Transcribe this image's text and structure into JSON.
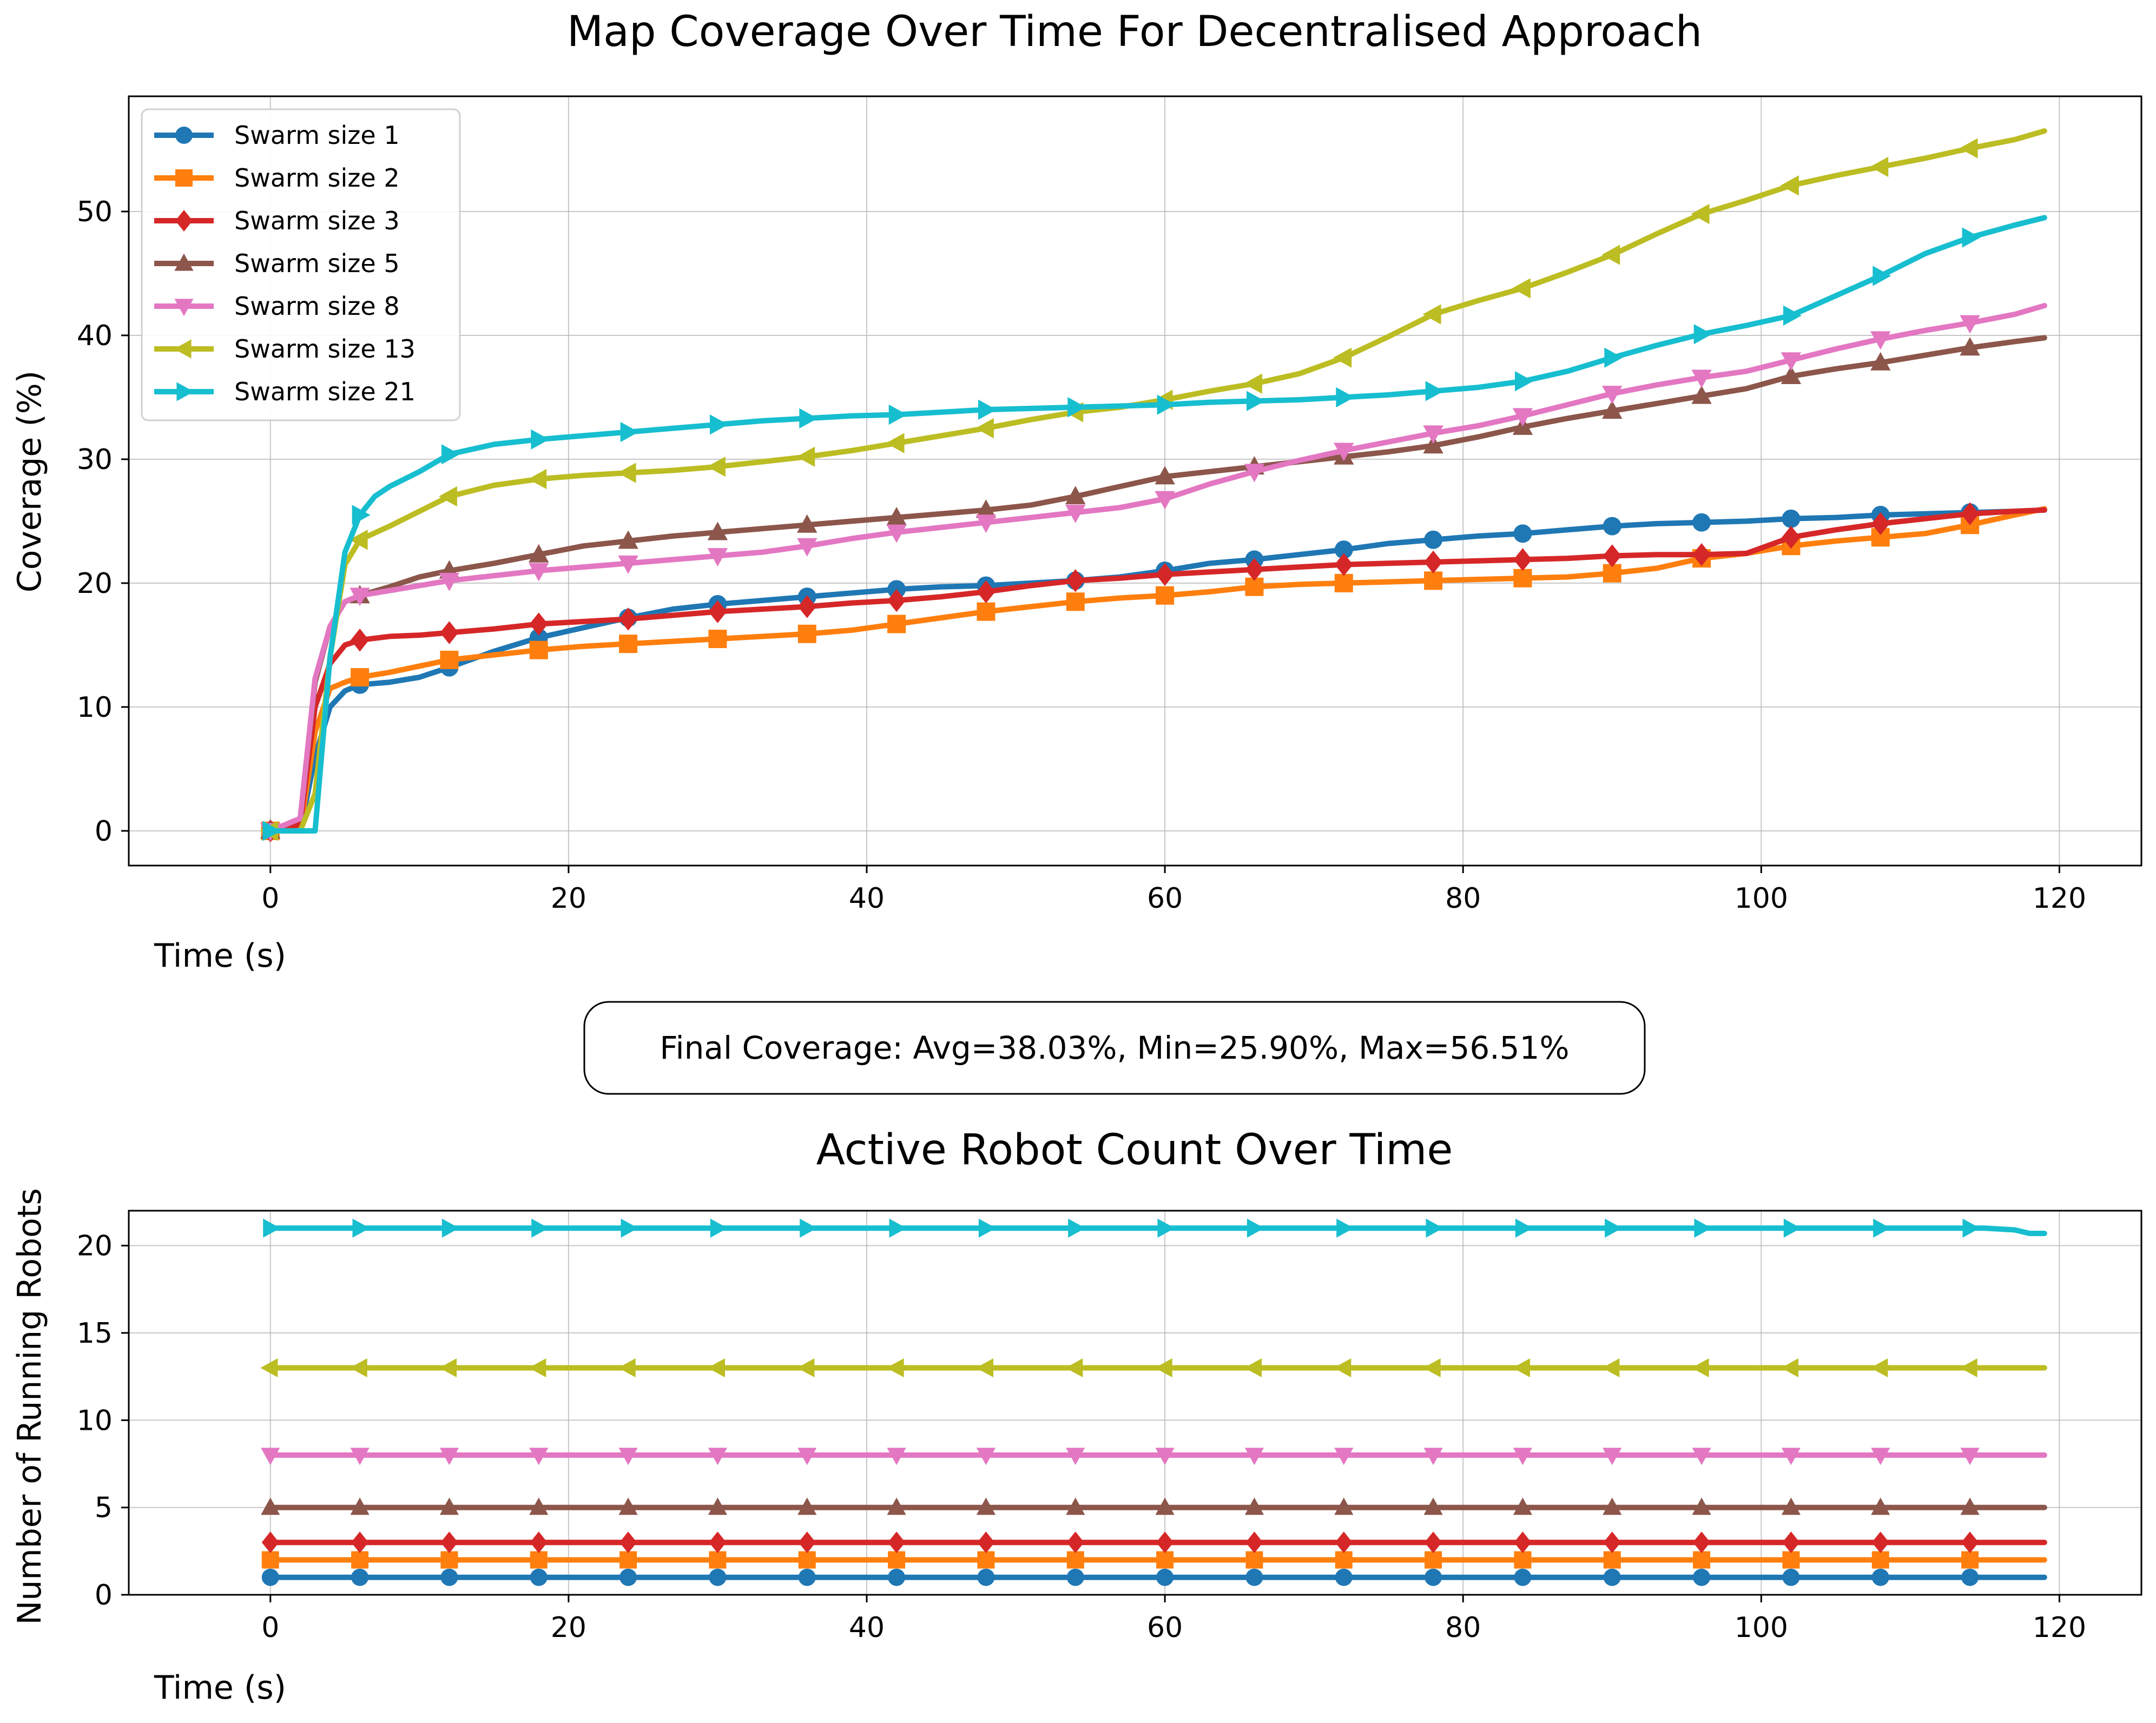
{
  "figure": {
    "annotation": "Final Coverage: Avg=38.03%, Min=25.90%, Max=56.51%"
  },
  "colors": {
    "Swarm size 1": "#1f77b4",
    "Swarm size 2": "#ff7f0e",
    "Swarm size 3": "#d62728",
    "Swarm size 5": "#8c564b",
    "Swarm size 8": "#e377c2",
    "Swarm size 13": "#bcbd22",
    "Swarm size 21": "#17becf"
  },
  "markers": {
    "Swarm size 1": "circle",
    "Swarm size 2": "square",
    "Swarm size 3": "diamond",
    "Swarm size 5": "triangle-up",
    "Swarm size 8": "triangle-down",
    "Swarm size 13": "triangle-left",
    "Swarm size 21": "triangle-right"
  },
  "chart_data": [
    {
      "type": "line",
      "title": "Map Coverage Over Time For Decentralised Approach",
      "xlabel": "Time (s)",
      "ylabel": "Coverage (%)",
      "xlim": [
        -9.5,
        125.5
      ],
      "ylim": [
        -2.8,
        59.3
      ],
      "xticks": [
        0,
        20,
        40,
        60,
        80,
        100,
        120
      ],
      "yticks": [
        0,
        10,
        20,
        30,
        40,
        50
      ],
      "grid": true,
      "legend_position": "upper-left",
      "series": [
        {
          "name": "Swarm size 1",
          "x": [
            0,
            2,
            3,
            4,
            5,
            6,
            8,
            10,
            12,
            15,
            18,
            21,
            24,
            27,
            30,
            33,
            36,
            39,
            42,
            45,
            48,
            51,
            54,
            57,
            60,
            63,
            66,
            69,
            72,
            75,
            78,
            81,
            84,
            87,
            90,
            93,
            96,
            99,
            102,
            105,
            108,
            111,
            114,
            117,
            119
          ],
          "y": [
            0,
            0,
            6,
            10,
            11.3,
            11.8,
            12,
            12.4,
            13.2,
            14.5,
            15.6,
            16.4,
            17.2,
            17.9,
            18.3,
            18.6,
            18.9,
            19.2,
            19.5,
            19.7,
            19.8,
            20.0,
            20.2,
            20.5,
            21.0,
            21.6,
            21.9,
            22.3,
            22.7,
            23.2,
            23.5,
            23.8,
            24.0,
            24.3,
            24.6,
            24.8,
            24.9,
            25.0,
            25.2,
            25.3,
            25.5,
            25.6,
            25.7,
            25.8,
            25.9
          ]
        },
        {
          "name": "Swarm size 2",
          "x": [
            0,
            2,
            3,
            4,
            5,
            6,
            8,
            10,
            12,
            15,
            18,
            21,
            24,
            27,
            30,
            33,
            36,
            39,
            42,
            45,
            48,
            51,
            54,
            57,
            60,
            63,
            66,
            69,
            72,
            75,
            78,
            81,
            84,
            87,
            90,
            93,
            96,
            99,
            102,
            105,
            108,
            111,
            114,
            117,
            119
          ],
          "y": [
            0,
            0,
            8,
            11.5,
            12.0,
            12.4,
            12.8,
            13.3,
            13.8,
            14.2,
            14.6,
            14.9,
            15.1,
            15.3,
            15.5,
            15.7,
            15.9,
            16.2,
            16.7,
            17.2,
            17.7,
            18.1,
            18.5,
            18.8,
            19.0,
            19.3,
            19.7,
            19.9,
            20.0,
            20.1,
            20.2,
            20.3,
            20.4,
            20.5,
            20.8,
            21.2,
            22.0,
            22.4,
            23.0,
            23.4,
            23.7,
            24.0,
            24.7,
            25.5,
            26.0
          ]
        },
        {
          "name": "Swarm size 3",
          "x": [
            0,
            2,
            3,
            4,
            5,
            6,
            8,
            10,
            12,
            15,
            18,
            21,
            24,
            27,
            30,
            33,
            36,
            39,
            42,
            45,
            48,
            51,
            54,
            57,
            60,
            63,
            66,
            69,
            72,
            75,
            78,
            81,
            84,
            87,
            90,
            93,
            96,
            99,
            102,
            105,
            108,
            111,
            114,
            117,
            119
          ],
          "y": [
            0,
            0.5,
            10,
            13.5,
            15.0,
            15.4,
            15.7,
            15.8,
            16.0,
            16.3,
            16.7,
            16.9,
            17.1,
            17.4,
            17.7,
            17.9,
            18.1,
            18.4,
            18.6,
            18.9,
            19.3,
            19.8,
            20.2,
            20.4,
            20.7,
            20.9,
            21.1,
            21.3,
            21.5,
            21.6,
            21.7,
            21.8,
            21.9,
            22.0,
            22.2,
            22.3,
            22.3,
            22.4,
            23.7,
            24.3,
            24.8,
            25.2,
            25.6,
            25.8,
            25.9
          ]
        },
        {
          "name": "Swarm size 5",
          "x": [
            0,
            2,
            3,
            4,
            5,
            6,
            8,
            10,
            12,
            15,
            18,
            21,
            24,
            27,
            30,
            33,
            36,
            39,
            42,
            45,
            48,
            51,
            54,
            57,
            60,
            63,
            66,
            69,
            72,
            75,
            78,
            81,
            84,
            87,
            90,
            93,
            96,
            99,
            102,
            105,
            108,
            111,
            114,
            117,
            119
          ],
          "y": [
            0,
            1,
            12,
            16.5,
            18.5,
            19.0,
            19.7,
            20.5,
            21.0,
            21.6,
            22.3,
            23.0,
            23.4,
            23.8,
            24.1,
            24.4,
            24.7,
            25.0,
            25.3,
            25.6,
            25.9,
            26.3,
            27.0,
            27.8,
            28.6,
            29.0,
            29.4,
            29.8,
            30.2,
            30.6,
            31.1,
            31.8,
            32.6,
            33.3,
            33.9,
            34.5,
            35.1,
            35.7,
            36.7,
            37.3,
            37.8,
            38.4,
            39.0,
            39.5,
            39.8
          ]
        },
        {
          "name": "Swarm size 8",
          "x": [
            0,
            2,
            3,
            4,
            5,
            6,
            8,
            10,
            12,
            15,
            18,
            21,
            24,
            27,
            30,
            33,
            36,
            39,
            42,
            45,
            48,
            51,
            54,
            57,
            60,
            63,
            66,
            69,
            72,
            75,
            78,
            81,
            84,
            87,
            90,
            93,
            96,
            99,
            102,
            105,
            108,
            111,
            114,
            117,
            119
          ],
          "y": [
            0,
            1,
            12.3,
            16.5,
            18.5,
            19.0,
            19.4,
            19.8,
            20.2,
            20.6,
            21.0,
            21.3,
            21.6,
            21.9,
            22.2,
            22.5,
            23.0,
            23.6,
            24.1,
            24.5,
            24.9,
            25.3,
            25.7,
            26.1,
            26.8,
            28.0,
            29.0,
            29.9,
            30.7,
            31.4,
            32.1,
            32.7,
            33.5,
            34.4,
            35.3,
            36.0,
            36.6,
            37.1,
            38.0,
            38.9,
            39.7,
            40.4,
            41.0,
            41.7,
            42.4
          ]
        },
        {
          "name": "Swarm size 13",
          "x": [
            0,
            2,
            3,
            4,
            5,
            6,
            8,
            10,
            12,
            15,
            18,
            21,
            24,
            27,
            30,
            33,
            36,
            39,
            42,
            45,
            48,
            51,
            54,
            57,
            60,
            63,
            66,
            69,
            72,
            75,
            78,
            81,
            84,
            87,
            90,
            93,
            96,
            99,
            102,
            105,
            108,
            111,
            114,
            117,
            119
          ],
          "y": [
            0,
            0,
            3,
            14,
            21.5,
            23.5,
            24.6,
            25.8,
            27.0,
            27.9,
            28.4,
            28.7,
            28.9,
            29.1,
            29.4,
            29.8,
            30.2,
            30.7,
            31.3,
            31.9,
            32.5,
            33.2,
            33.8,
            34.2,
            34.8,
            35.5,
            36.1,
            36.9,
            38.2,
            39.9,
            41.7,
            42.8,
            43.8,
            45.1,
            46.5,
            48.2,
            49.8,
            50.9,
            52.1,
            52.9,
            53.6,
            54.3,
            55.1,
            55.8,
            56.5
          ]
        },
        {
          "name": "Swarm size 21",
          "x": [
            0,
            2,
            3,
            4,
            5,
            6,
            7,
            8,
            10,
            12,
            15,
            18,
            21,
            24,
            27,
            30,
            33,
            36,
            39,
            42,
            45,
            48,
            51,
            54,
            57,
            60,
            63,
            66,
            69,
            72,
            75,
            78,
            81,
            84,
            87,
            90,
            93,
            96,
            99,
            102,
            105,
            108,
            111,
            114,
            117,
            119
          ],
          "y": [
            0,
            0,
            0,
            14,
            22.5,
            25.5,
            27.0,
            27.8,
            29.0,
            30.4,
            31.2,
            31.6,
            31.9,
            32.2,
            32.5,
            32.8,
            33.1,
            33.3,
            33.5,
            33.6,
            33.8,
            34.0,
            34.1,
            34.2,
            34.3,
            34.4,
            34.6,
            34.7,
            34.8,
            35.0,
            35.2,
            35.5,
            35.8,
            36.3,
            37.1,
            38.2,
            39.2,
            40.1,
            40.8,
            41.6,
            43.2,
            44.8,
            46.6,
            47.9,
            48.9,
            49.5
          ]
        }
      ]
    },
    {
      "type": "line",
      "title": "Active Robot Count Over Time",
      "xlabel": "Time (s)",
      "ylabel": "Number of Running Robots",
      "xlim": [
        -9.5,
        125.5
      ],
      "ylim": [
        0,
        22
      ],
      "xticks": [
        0,
        20,
        40,
        60,
        80,
        100,
        120
      ],
      "yticks": [
        0,
        5,
        10,
        15,
        20
      ],
      "grid": true,
      "series": [
        {
          "name": "Swarm size 1",
          "x": [
            0,
            119
          ],
          "y": [
            1,
            1
          ]
        },
        {
          "name": "Swarm size 2",
          "x": [
            0,
            119
          ],
          "y": [
            2,
            2
          ]
        },
        {
          "name": "Swarm size 3",
          "x": [
            0,
            119
          ],
          "y": [
            3,
            3
          ]
        },
        {
          "name": "Swarm size 5",
          "x": [
            0,
            119
          ],
          "y": [
            5,
            5
          ]
        },
        {
          "name": "Swarm size 8",
          "x": [
            0,
            119
          ],
          "y": [
            8,
            8
          ]
        },
        {
          "name": "Swarm size 13",
          "x": [
            0,
            119
          ],
          "y": [
            13,
            13
          ]
        },
        {
          "name": "Swarm size 21",
          "x": [
            0,
            115,
            117,
            118,
            119
          ],
          "y": [
            21,
            21,
            20.9,
            20.7,
            20.7
          ]
        }
      ]
    }
  ]
}
